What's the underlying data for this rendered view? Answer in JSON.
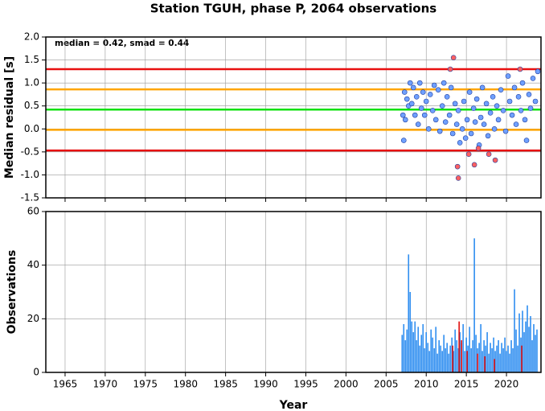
{
  "chart_data": [
    {
      "type": "scatter",
      "title": "Station TGUH, phase P, 2064 observations",
      "ylabel": "Median residual [s]",
      "annotation": "median = 0.42, smad = 0.44",
      "xlim": [
        1962.6,
        2024.3
      ],
      "xticks": [
        1965,
        1970,
        1975,
        1980,
        1985,
        1990,
        1995,
        2000,
        2005,
        2010,
        2015,
        2020
      ],
      "ylim": [
        -1.5,
        2.0
      ],
      "yticks": [
        {
          "value": 2.0,
          "label": "2.0"
        },
        1.5,
        {
          "value": 1.0,
          "label": "1.0"
        },
        0.5,
        {
          "value": 0.0,
          "label": "0.0"
        },
        -0.5,
        {
          "value": -1.0,
          "label": "-1.0"
        },
        -1.5
      ],
      "grid": true,
      "lines": [
        {
          "value": 1.3,
          "color": "#e81010"
        },
        {
          "value": 0.86,
          "color": "#ffa500"
        },
        {
          "value": 0.42,
          "color": "#10e010"
        },
        {
          "value": -0.02,
          "color": "#ffa500"
        },
        {
          "value": -0.47,
          "color": "#e81010"
        }
      ],
      "series": [
        {
          "color": "#6fa0ff",
          "x": [
            2007.1,
            2007.2,
            2007.3,
            2007.4,
            2007.6,
            2007.8,
            2008.0,
            2008.2,
            2008.4,
            2008.6,
            2008.8,
            2009.0,
            2009.2,
            2009.4,
            2009.6,
            2009.8,
            2010.0,
            2010.3,
            2010.5,
            2010.8,
            2011.0,
            2011.2,
            2011.5,
            2011.7,
            2012.0,
            2012.2,
            2012.4,
            2012.6,
            2012.9,
            2013.1,
            2013.3,
            2013.6,
            2013.8,
            2014.0,
            2014.2,
            2014.5,
            2014.7,
            2014.9,
            2015.1,
            2015.4,
            2015.6,
            2015.9,
            2016.1,
            2016.3,
            2016.6,
            2016.8,
            2017.0,
            2017.2,
            2017.5,
            2017.7,
            2018.0,
            2018.3,
            2018.5,
            2018.8,
            2019.0,
            2019.3,
            2019.6,
            2019.9,
            2020.2,
            2020.4,
            2020.7,
            2021.0,
            2021.2,
            2021.5,
            2021.8,
            2022.0,
            2022.3,
            2022.5,
            2022.8,
            2023.0,
            2023.3,
            2023.6,
            2023.9
          ],
          "values": [
            0.3,
            -0.25,
            0.8,
            0.2,
            0.65,
            0.5,
            1.0,
            0.55,
            0.9,
            0.3,
            0.7,
            0.1,
            1.0,
            0.45,
            0.8,
            0.3,
            0.6,
            0.0,
            0.75,
            0.4,
            0.95,
            0.2,
            0.85,
            -0.05,
            0.5,
            1.0,
            0.15,
            0.7,
            0.3,
            0.9,
            -0.1,
            0.55,
            0.1,
            0.4,
            -0.3,
            0.0,
            0.6,
            -0.2,
            0.2,
            0.8,
            -0.1,
            0.45,
            0.15,
            0.65,
            -0.35,
            0.25,
            0.9,
            0.1,
            0.55,
            -0.15,
            0.35,
            0.7,
            0.0,
            0.5,
            0.2,
            0.85,
            0.4,
            -0.05,
            1.15,
            0.6,
            0.3,
            0.9,
            0.1,
            0.7,
            0.4,
            1.0,
            0.2,
            -0.25,
            0.75,
            0.45,
            1.1,
            0.6,
            1.25
          ]
        },
        {
          "color": "#ff6060",
          "x": [
            2013.0,
            2013.4,
            2013.9,
            2014.0,
            2015.3,
            2016.0,
            2016.5,
            2017.8,
            2018.6,
            2021.7
          ],
          "values": [
            1.3,
            1.55,
            -0.82,
            -1.07,
            -0.55,
            -0.78,
            -0.42,
            -0.55,
            -0.68,
            1.3
          ]
        }
      ]
    },
    {
      "type": "bar",
      "xlabel": "Year",
      "ylabel": "Observations",
      "xlim": [
        1962.6,
        2024.3
      ],
      "xticks": [
        1965,
        1970,
        1975,
        1980,
        1985,
        1990,
        1995,
        2000,
        2005,
        2010,
        2015,
        2020
      ],
      "ylim": [
        0,
        60
      ],
      "yticks": [
        0,
        20,
        40,
        60
      ],
      "grid": true,
      "series": [
        {
          "color": "#2f8ef0",
          "x": [
            2007.0,
            2007.2,
            2007.4,
            2007.6,
            2007.8,
            2008.0,
            2008.2,
            2008.4,
            2008.6,
            2008.8,
            2009.0,
            2009.2,
            2009.4,
            2009.6,
            2009.8,
            2010.0,
            2010.2,
            2010.4,
            2010.6,
            2010.8,
            2011.0,
            2011.2,
            2011.4,
            2011.6,
            2011.8,
            2012.0,
            2012.2,
            2012.4,
            2012.6,
            2012.8,
            2013.0,
            2013.2,
            2013.4,
            2013.6,
            2013.8,
            2014.0,
            2014.2,
            2014.4,
            2014.6,
            2014.8,
            2015.0,
            2015.2,
            2015.4,
            2015.6,
            2015.8,
            2016.0,
            2016.2,
            2016.4,
            2016.6,
            2016.8,
            2017.0,
            2017.2,
            2017.4,
            2017.6,
            2017.8,
            2018.0,
            2018.2,
            2018.4,
            2018.6,
            2018.8,
            2019.0,
            2019.2,
            2019.4,
            2019.6,
            2019.8,
            2020.0,
            2020.2,
            2020.4,
            2020.6,
            2020.8,
            2021.0,
            2021.2,
            2021.4,
            2021.6,
            2021.8,
            2022.0,
            2022.2,
            2022.4,
            2022.6,
            2022.8,
            2023.0,
            2023.2,
            2023.4,
            2023.6,
            2023.8
          ],
          "values": [
            14,
            18,
            12,
            16,
            44,
            30,
            19,
            15,
            19,
            12,
            17,
            10,
            14,
            18,
            9,
            15,
            11,
            8,
            16,
            13,
            9,
            17,
            7,
            12,
            10,
            8,
            14,
            9,
            11,
            7,
            10,
            13,
            8,
            16,
            12,
            9,
            15,
            11,
            18,
            8,
            13,
            10,
            17,
            9,
            12,
            50,
            14,
            9,
            11,
            18,
            8,
            12,
            10,
            15,
            7,
            11,
            9,
            13,
            8,
            10,
            12,
            7,
            11,
            9,
            13,
            8,
            10,
            7,
            12,
            9,
            31,
            16,
            10,
            22,
            13,
            23,
            15,
            19,
            25,
            17,
            21,
            12,
            18,
            14,
            16
          ]
        },
        {
          "color": "#e01010",
          "x": [
            2013.3,
            2014.1,
            2014.4,
            2015.1,
            2016.4,
            2017.3,
            2018.5,
            2021.9
          ],
          "values": [
            10,
            19,
            12,
            8,
            7,
            6,
            5,
            10
          ]
        }
      ]
    }
  ]
}
